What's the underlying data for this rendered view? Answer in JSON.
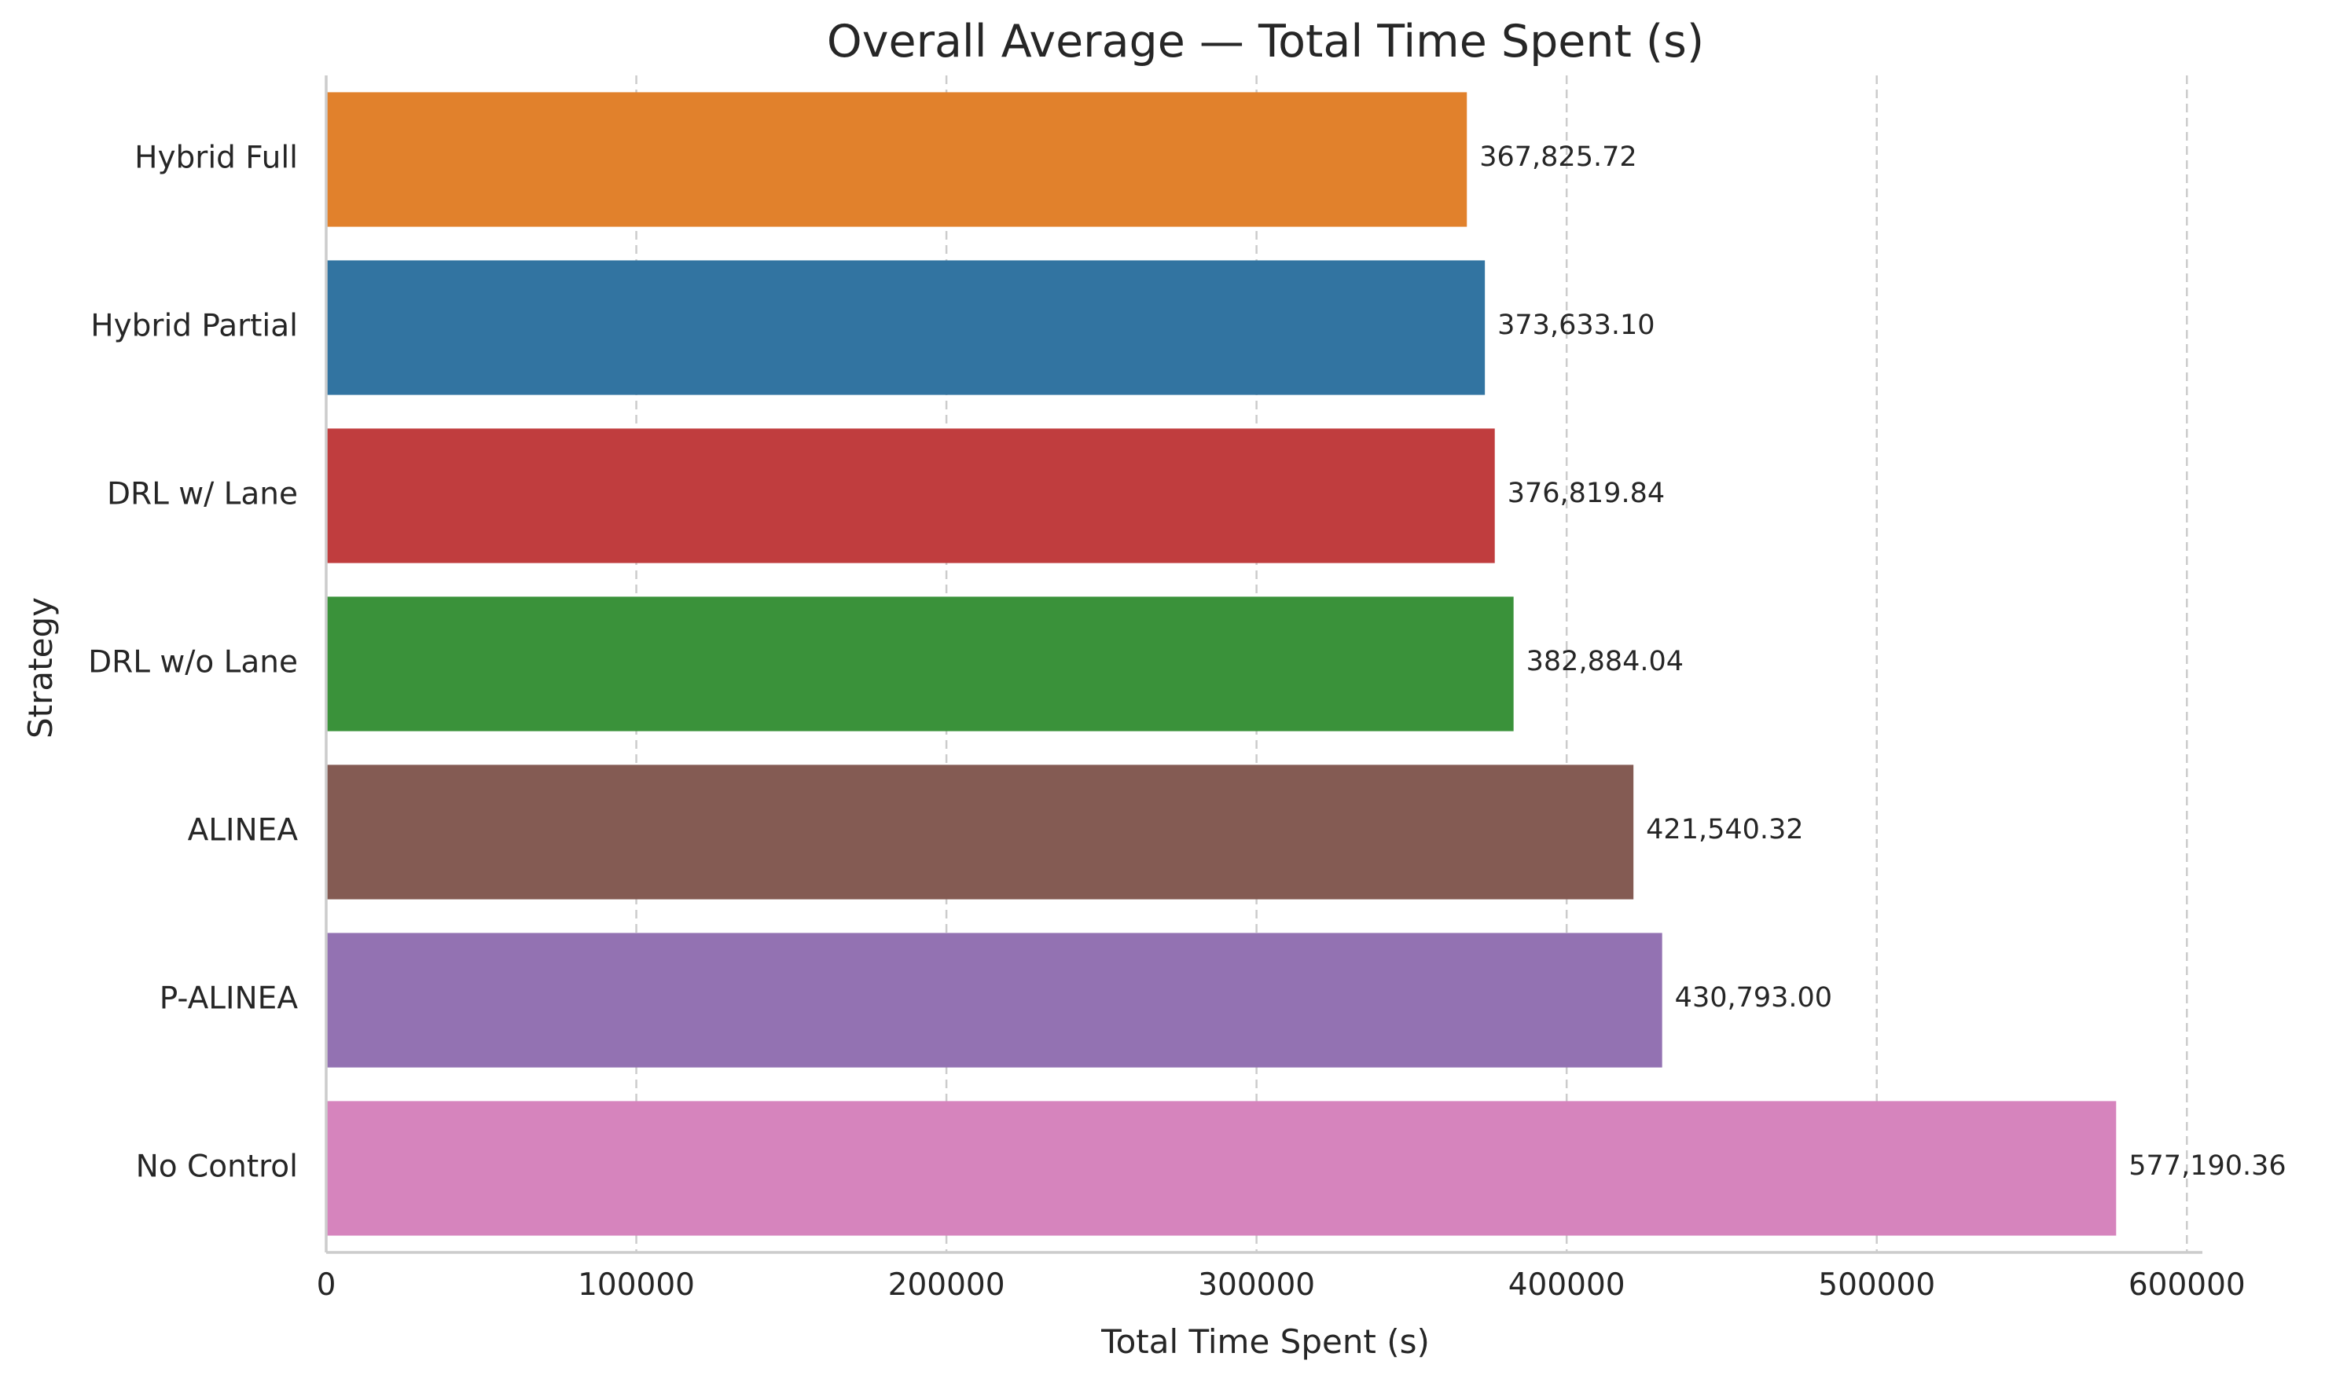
{
  "chart_data": {
    "type": "bar",
    "orientation": "horizontal",
    "title": "Overall Average — Total Time Spent (s)",
    "xlabel": "Total Time Spent (s)",
    "ylabel": "Strategy",
    "categories": [
      "Hybrid Full",
      "Hybrid Partial",
      "DRL w/ Lane",
      "DRL w/o Lane",
      "ALINEA",
      "P-ALINEA",
      "No Control"
    ],
    "values": [
      367825.72,
      373633.1,
      376819.84,
      382884.04,
      421540.32,
      430793.0,
      577190.36
    ],
    "value_labels": [
      "367,825.72",
      "373,633.10",
      "376,819.84",
      "382,884.04",
      "421,540.32",
      "430,793.00",
      "577,190.36"
    ],
    "colors": [
      "#e1812c",
      "#3274a1",
      "#c03d3e",
      "#3a923a",
      "#845b53",
      "#9372b2",
      "#d684bd"
    ],
    "xlim": [
      0,
      605000
    ],
    "xticks": [
      0,
      100000,
      200000,
      300000,
      400000,
      500000,
      600000
    ],
    "xtick_labels": [
      "0",
      "100000",
      "200000",
      "300000",
      "400000",
      "500000",
      "600000"
    ],
    "grid": "x-dashed"
  }
}
